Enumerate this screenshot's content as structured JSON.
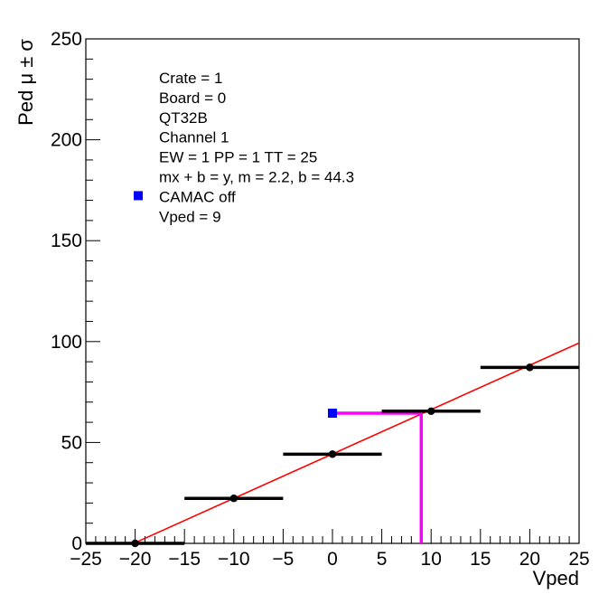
{
  "chart_data": {
    "type": "scatter",
    "xlabel": "Vped",
    "ylabel": "Ped μ ± σ",
    "xlim": [
      -25,
      25
    ],
    "ylim": [
      0,
      250
    ],
    "x_ticks": [
      "−25",
      "−20",
      "−15",
      "−10",
      "−5",
      "0",
      "5",
      "10",
      "15",
      "20",
      "25"
    ],
    "y_ticks": [
      "0",
      "50",
      "100",
      "150",
      "200",
      "250"
    ],
    "grid": false,
    "series": [
      {
        "color": "#000000",
        "points": [
          {
            "x": -20,
            "y": 0,
            "xerr": 5
          },
          {
            "x": -10,
            "y": 22.3,
            "xerr": 5
          },
          {
            "x": 0,
            "y": 44.2,
            "xerr": 5
          },
          {
            "x": 10,
            "y": 65.5,
            "xerr": 5
          },
          {
            "x": 20,
            "y": 87.2,
            "xerr": 5
          }
        ]
      },
      {
        "name": "CAMAC off",
        "color": "#0000ff",
        "marker": "square",
        "points": [
          {
            "x": 0,
            "y": 64.5
          }
        ]
      }
    ],
    "fit": {
      "m": 2.2,
      "b": 44.3,
      "color": "#ff0000",
      "x_range": [
        -20,
        25
      ]
    },
    "marker_lines": {
      "color": "#ff00ff",
      "vertical": {
        "x": 9,
        "y_from": 0,
        "y_to": 64.5
      },
      "horizontal": {
        "y": 64.5,
        "x_from": 0,
        "x_to": 9
      }
    },
    "annotations": [
      "Crate = 1",
      "Board = 0",
      "QT32B",
      "Channel 1",
      "EW = 1 PP = 1 TT = 25",
      "mx + b = y, m = 2.2, b = 44.3",
      "CAMAC off",
      "Vped = 9"
    ],
    "legend": {
      "entry": "CAMAC off",
      "placement": "top-left"
    }
  }
}
